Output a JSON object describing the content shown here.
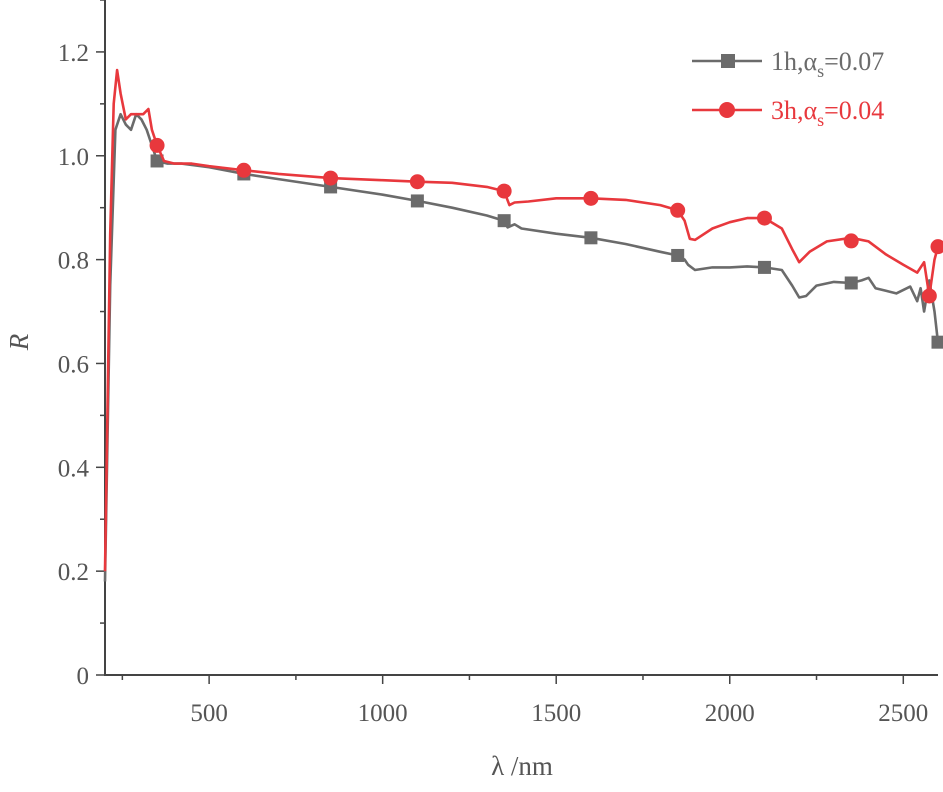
{
  "chart_data": {
    "type": "line",
    "title": "",
    "xlabel": "λ /nm",
    "ylabel": "R",
    "xlim": [
      200,
      2600
    ],
    "ylim": [
      0,
      1.3
    ],
    "x_ticks": [
      500,
      1000,
      1500,
      2000,
      2500
    ],
    "y_ticks": [
      0,
      0.2,
      0.4,
      0.6,
      0.8,
      1.0,
      1.2
    ],
    "x_tick_labels": [
      "500",
      "1000",
      "1500",
      "2000",
      "2500"
    ],
    "y_tick_labels": [
      "0",
      "0.2",
      "0.4",
      "0.6",
      "0.8",
      "1.0",
      "1.2"
    ],
    "grid": false,
    "legend_position": "top-right",
    "series": [
      {
        "name": "1h,αs=0.07",
        "legend_main": "1h,α",
        "legend_sub": "s",
        "legend_suffix": "=0.07",
        "color": "#6b6b6b",
        "marker": "square",
        "points": [
          [
            200,
            0.18
          ],
          [
            215,
            0.75
          ],
          [
            230,
            1.05
          ],
          [
            245,
            1.08
          ],
          [
            260,
            1.06
          ],
          [
            275,
            1.05
          ],
          [
            290,
            1.08
          ],
          [
            305,
            1.07
          ],
          [
            320,
            1.05
          ],
          [
            335,
            1.02
          ],
          [
            350,
            0.99
          ],
          [
            380,
            0.985
          ],
          [
            420,
            0.985
          ],
          [
            500,
            0.978
          ],
          [
            600,
            0.965
          ],
          [
            700,
            0.955
          ],
          [
            850,
            0.94
          ],
          [
            1000,
            0.925
          ],
          [
            1100,
            0.913
          ],
          [
            1200,
            0.9
          ],
          [
            1300,
            0.885
          ],
          [
            1350,
            0.875
          ],
          [
            1360,
            0.862
          ],
          [
            1380,
            0.868
          ],
          [
            1400,
            0.86
          ],
          [
            1500,
            0.85
          ],
          [
            1600,
            0.842
          ],
          [
            1700,
            0.83
          ],
          [
            1800,
            0.815
          ],
          [
            1850,
            0.808
          ],
          [
            1870,
            0.8
          ],
          [
            1880,
            0.79
          ],
          [
            1900,
            0.78
          ],
          [
            1950,
            0.785
          ],
          [
            2000,
            0.785
          ],
          [
            2050,
            0.787
          ],
          [
            2100,
            0.785
          ],
          [
            2150,
            0.78
          ],
          [
            2180,
            0.75
          ],
          [
            2200,
            0.727
          ],
          [
            2220,
            0.73
          ],
          [
            2250,
            0.75
          ],
          [
            2300,
            0.757
          ],
          [
            2350,
            0.755
          ],
          [
            2380,
            0.76
          ],
          [
            2400,
            0.765
          ],
          [
            2420,
            0.745
          ],
          [
            2450,
            0.74
          ],
          [
            2480,
            0.735
          ],
          [
            2520,
            0.748
          ],
          [
            2540,
            0.72
          ],
          [
            2550,
            0.745
          ],
          [
            2560,
            0.7
          ],
          [
            2575,
            0.76
          ],
          [
            2590,
            0.7
          ],
          [
            2600,
            0.64
          ]
        ],
        "markers": [
          [
            350,
            0.99
          ],
          [
            600,
            0.965
          ],
          [
            850,
            0.94
          ],
          [
            1100,
            0.913
          ],
          [
            1350,
            0.875
          ],
          [
            1600,
            0.842
          ],
          [
            1850,
            0.808
          ],
          [
            2100,
            0.785
          ],
          [
            2350,
            0.755
          ],
          [
            2600,
            0.641
          ]
        ]
      },
      {
        "name": "3h,αs=0.04",
        "legend_main": "3h,α",
        "legend_sub": "s",
        "legend_suffix": "=0.04",
        "color": "#e8383d",
        "marker": "circle",
        "points": [
          [
            200,
            0.2
          ],
          [
            215,
            0.85
          ],
          [
            225,
            1.1
          ],
          [
            235,
            1.165
          ],
          [
            245,
            1.12
          ],
          [
            260,
            1.07
          ],
          [
            275,
            1.08
          ],
          [
            290,
            1.08
          ],
          [
            310,
            1.08
          ],
          [
            325,
            1.09
          ],
          [
            335,
            1.05
          ],
          [
            350,
            1.02
          ],
          [
            370,
            0.99
          ],
          [
            400,
            0.985
          ],
          [
            450,
            0.985
          ],
          [
            500,
            0.98
          ],
          [
            600,
            0.972
          ],
          [
            700,
            0.965
          ],
          [
            850,
            0.957
          ],
          [
            1000,
            0.953
          ],
          [
            1100,
            0.95
          ],
          [
            1200,
            0.948
          ],
          [
            1300,
            0.94
          ],
          [
            1350,
            0.932
          ],
          [
            1365,
            0.905
          ],
          [
            1380,
            0.91
          ],
          [
            1420,
            0.912
          ],
          [
            1500,
            0.918
          ],
          [
            1600,
            0.918
          ],
          [
            1700,
            0.915
          ],
          [
            1800,
            0.905
          ],
          [
            1850,
            0.895
          ],
          [
            1870,
            0.875
          ],
          [
            1885,
            0.84
          ],
          [
            1900,
            0.838
          ],
          [
            1950,
            0.86
          ],
          [
            2000,
            0.872
          ],
          [
            2050,
            0.88
          ],
          [
            2100,
            0.88
          ],
          [
            2150,
            0.86
          ],
          [
            2180,
            0.82
          ],
          [
            2200,
            0.795
          ],
          [
            2230,
            0.815
          ],
          [
            2280,
            0.835
          ],
          [
            2350,
            0.842
          ],
          [
            2400,
            0.835
          ],
          [
            2450,
            0.81
          ],
          [
            2500,
            0.79
          ],
          [
            2540,
            0.775
          ],
          [
            2560,
            0.795
          ],
          [
            2575,
            0.73
          ],
          [
            2590,
            0.8
          ],
          [
            2600,
            0.825
          ]
        ],
        "markers": [
          [
            350,
            1.02
          ],
          [
            600,
            0.972
          ],
          [
            850,
            0.957
          ],
          [
            1100,
            0.95
          ],
          [
            1350,
            0.932
          ],
          [
            1600,
            0.918
          ],
          [
            1850,
            0.895
          ],
          [
            2100,
            0.88
          ],
          [
            2350,
            0.836
          ],
          [
            2575,
            0.73
          ],
          [
            2600,
            0.825
          ]
        ]
      }
    ]
  }
}
